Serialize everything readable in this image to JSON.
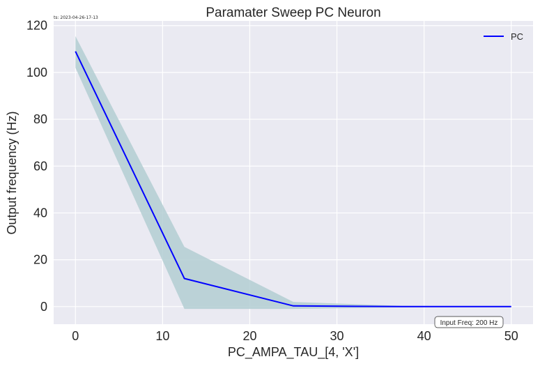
{
  "timestamp": "ts: 2023-04-26-17-13",
  "chart_data": {
    "type": "line",
    "title": "Paramater Sweep PC Neuron",
    "xlabel": "PC_AMPA_TAU_[4, 'X']",
    "ylabel": "Output frequency (Hz)",
    "xlim": [
      -2.5,
      52.5
    ],
    "ylim": [
      -7.5,
      122
    ],
    "xticks": [
      0,
      10,
      20,
      30,
      40,
      50
    ],
    "yticks": [
      0,
      20,
      40,
      60,
      80,
      100,
      120
    ],
    "grid": true,
    "legend_position": "top-right",
    "series": [
      {
        "name": "PC",
        "color": "#0000ff",
        "band_color": "#b3ced2",
        "x": [
          0,
          12.5,
          25,
          37.5,
          50
        ],
        "y": [
          109,
          12,
          0.3,
          0,
          0
        ],
        "lower": [
          102,
          -1,
          -1,
          -0.3,
          0
        ],
        "upper": [
          115.5,
          25.5,
          2,
          0.3,
          0
        ]
      }
    ],
    "annotation": {
      "text": "Input Freq: 200 Hz",
      "position": "bottom-right"
    }
  },
  "colors": {
    "plot_background": "#eaeaf2",
    "grid": "#ffffff",
    "text": "#262626"
  }
}
